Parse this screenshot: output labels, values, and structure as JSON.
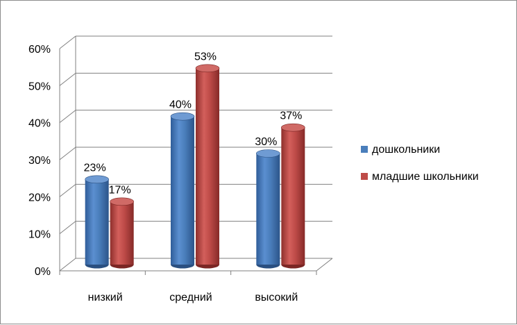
{
  "chart_data": {
    "type": "bar",
    "style": "3d-cylinder",
    "categories": [
      "низкий",
      "средний",
      "высокий"
    ],
    "series": [
      {
        "name": "дошкольники",
        "values": [
          23,
          40,
          30
        ],
        "color": "#4a7ebb"
      },
      {
        "name": "младшие школьники",
        "values": [
          17,
          53,
          37
        ],
        "color": "#be4b48"
      }
    ],
    "value_suffix": "%",
    "ylim": [
      0,
      60
    ],
    "yticks": [
      "0%",
      "10%",
      "20%",
      "30%",
      "40%",
      "50%",
      "60%"
    ],
    "grid": true,
    "legend_position": "right"
  }
}
